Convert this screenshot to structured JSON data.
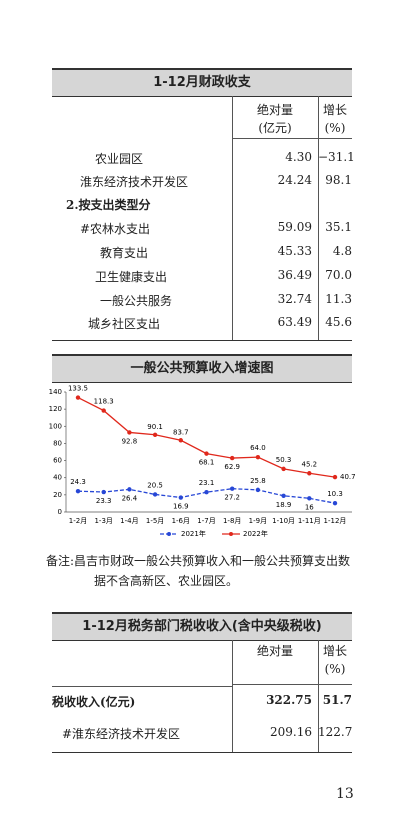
{
  "table1": {
    "title": "1-12月财政收支",
    "headers": [
      "绝对量\n(亿元)",
      "增长(%)"
    ],
    "rows": [
      [
        "农业园区",
        "4.30",
        "−31.1"
      ],
      [
        "淮东经济技术开发区",
        "24.24",
        "98.1"
      ],
      [
        "2.按支出类型分"
      ],
      [
        "#农林水支出",
        "59.09",
        "35.1"
      ],
      [
        "教育支出",
        "45.33",
        "4.8"
      ],
      [
        "卫生健康支出",
        "36.49",
        "70.0"
      ],
      [
        "一般公共服务",
        "32.74",
        "11.3"
      ],
      [
        "城乡社区支出",
        "63.49",
        "45.6"
      ]
    ]
  },
  "chart_data": {
    "type": "line",
    "title": "一般公共预算收入增速图",
    "categories": [
      "1-2月",
      "1-3月",
      "1-4月",
      "1-5月",
      "1-6月",
      "1-7月",
      "1-8月",
      "1-9月",
      "1-10月",
      "1-11月",
      "1-12月"
    ],
    "series": [
      {
        "name": "2021年",
        "color": "#2747d6",
        "values": [
          24.3,
          23.3,
          26.4,
          20.5,
          16.9,
          23.1,
          27.2,
          25.8,
          18.9,
          16.0,
          10.3
        ]
      },
      {
        "name": "2022年",
        "color": "#e0281c",
        "values": [
          133.5,
          118.3,
          92.8,
          90.1,
          83.7,
          68.1,
          62.9,
          64.0,
          50.3,
          45.2,
          40.7
        ],
        "value_labels": [
          "133.5",
          "118.3",
          "92.8",
          "90.1",
          "83.7",
          "68.1",
          "62.9",
          "64.0",
          "50.3",
          "45.2",
          "40.7"
        ]
      }
    ],
    "ylim": [
      0,
      140
    ],
    "yticks": [
      0,
      20,
      40,
      60,
      80,
      100,
      120,
      140
    ],
    "grid": false
  },
  "note": "备注:昌吉市财政一般公共预算收入和一般公共预算支出数据不含高新区、农业园区。",
  "table2": {
    "title": "1-12月税务部门税收收入(含中央级税收)",
    "headers": [
      "绝对量",
      "增长\n(%)"
    ],
    "rows": [
      [
        "税收收入(亿元)",
        "322.75",
        "51.7"
      ],
      [
        "#淮东经济技术开发区",
        "209.16",
        "122.7"
      ]
    ]
  },
  "page_number": "13"
}
